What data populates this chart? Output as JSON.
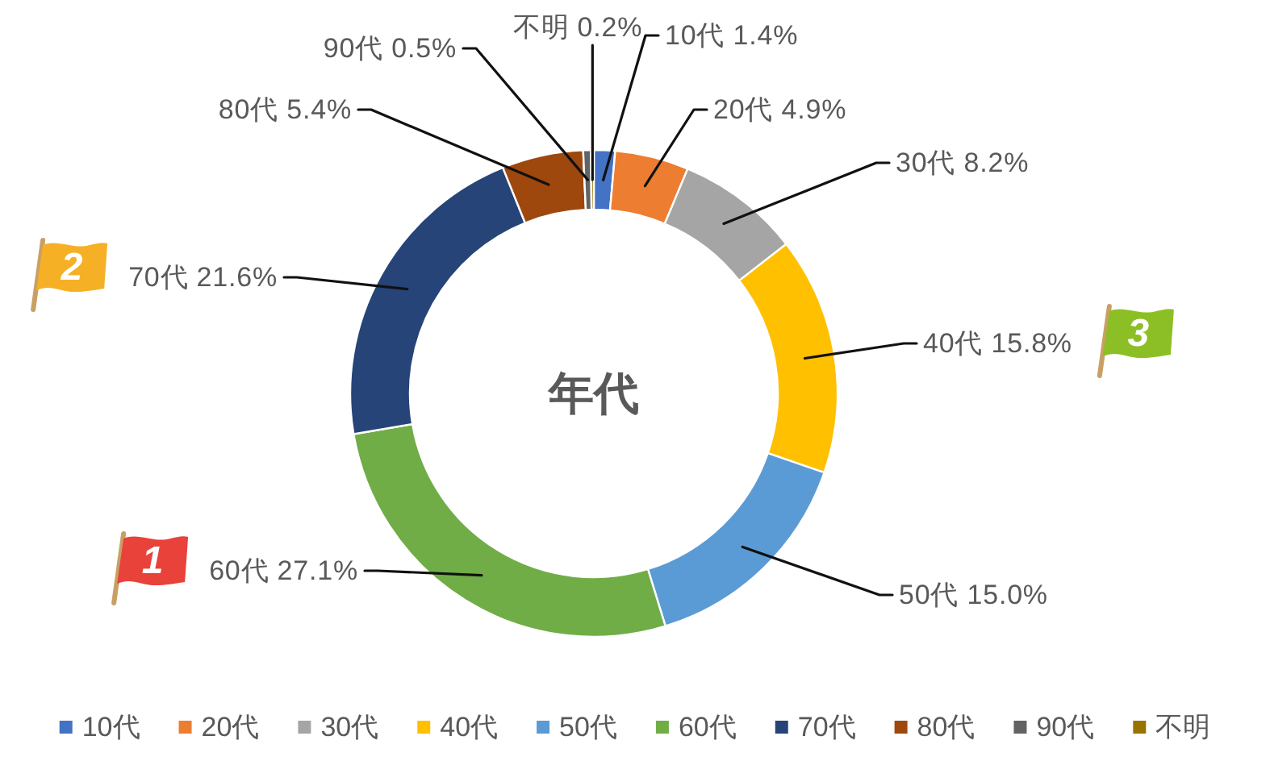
{
  "chart_data": {
    "type": "donut",
    "title": "年代",
    "categories": [
      "10代",
      "20代",
      "30代",
      "40代",
      "50代",
      "60代",
      "70代",
      "80代",
      "90代",
      "不明"
    ],
    "values": [
      1.4,
      4.9,
      8.2,
      15.8,
      15.0,
      27.1,
      21.6,
      5.4,
      0.5,
      0.2
    ],
    "colors": [
      "#4472c4",
      "#ed7d31",
      "#a5a5a5",
      "#ffc000",
      "#5b9bd5",
      "#70ad47",
      "#264478",
      "#9e480e",
      "#636363",
      "#997300"
    ],
    "value_labels": [
      "10代 1.4%",
      "20代 4.9%",
      "30代 8.2%",
      "40代 15.8%",
      "50代 15.0%",
      "60代 27.1%",
      "70代 21.6%",
      "80代 5.4%",
      "90代 0.5%",
      "不明 0.2%"
    ],
    "legend": "bottom",
    "annotations": [
      {
        "text": "1",
        "x": "60代"
      },
      {
        "text": "2",
        "x": "70代"
      },
      {
        "text": "3",
        "x": "40代"
      }
    ]
  }
}
